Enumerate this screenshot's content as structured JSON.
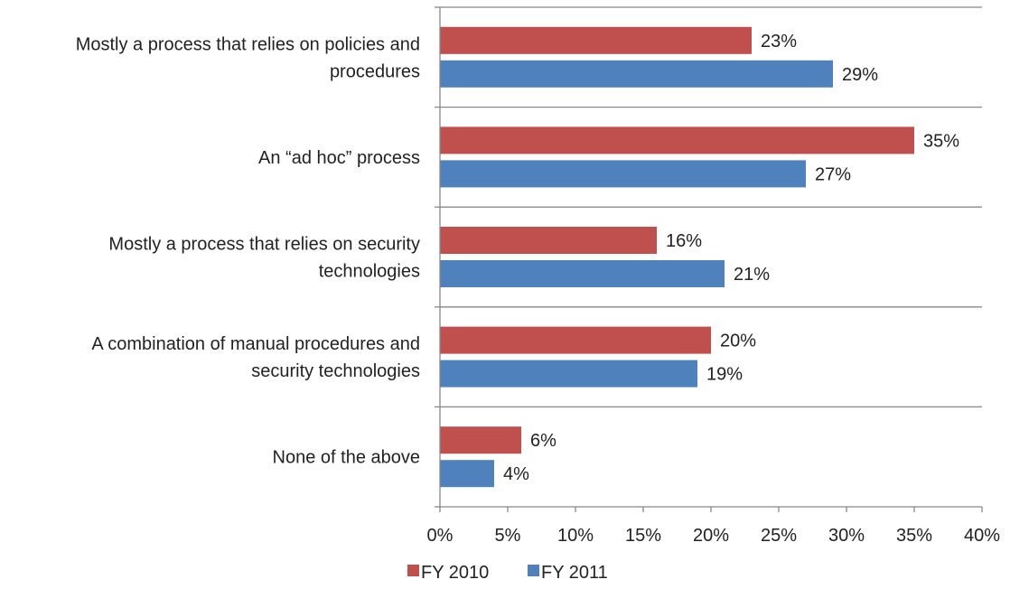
{
  "chart_data": {
    "type": "bar",
    "orientation": "horizontal",
    "categories": [
      [
        "Mostly a process that relies on policies and",
        "procedures"
      ],
      [
        "An “ad hoc” process"
      ],
      [
        "Mostly a process that relies on security",
        "technologies"
      ],
      [
        "A combination of manual procedures and",
        "security technologies"
      ],
      [
        "None of the above"
      ]
    ],
    "series": [
      {
        "name": "FY 2010",
        "color": "#c0504d",
        "values": [
          23,
          35,
          16,
          20,
          6
        ],
        "labels": [
          "23%",
          "35%",
          "16%",
          "20%",
          "6%"
        ]
      },
      {
        "name": "FY 2011",
        "color": "#4f81bd",
        "values": [
          29,
          27,
          21,
          19,
          4
        ],
        "labels": [
          "29%",
          "27%",
          "21%",
          "19%",
          "4%"
        ]
      }
    ],
    "xlim": [
      0,
      40
    ],
    "xticks": [
      0,
      5,
      10,
      15,
      20,
      25,
      30,
      35,
      40
    ],
    "xtick_labels": [
      "0%",
      "5%",
      "10%",
      "15%",
      "20%",
      "25%",
      "30%",
      "35%",
      "40%"
    ],
    "grid": "horizontal category separators",
    "legend_position": "bottom",
    "axis_color": "#888888"
  }
}
